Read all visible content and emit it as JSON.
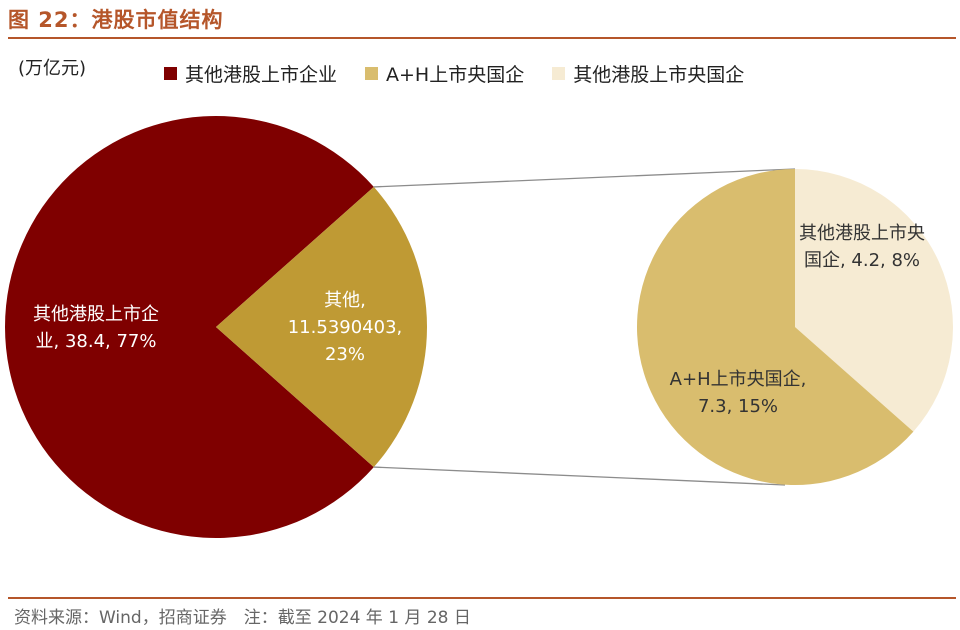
{
  "title": "图 22：港股市值结构",
  "unit_label": "(万亿元)",
  "legend": [
    {
      "label": "其他港股上市企业",
      "color": "#7f0000"
    },
    {
      "label": "A+H上市央国企",
      "color": "#d9bd6e"
    },
    {
      "label": "其他港股上市央国企",
      "color": "#f6ebd3"
    }
  ],
  "source_note": "资料来源：Wind，招商证券　注：截至 2024 年 1 月 28 日",
  "chart_data": {
    "type": "pie",
    "main_pie": {
      "slices": [
        {
          "name": "其他港股上市企业",
          "value": 38.4,
          "percent": "77%",
          "color": "#7f0000",
          "label_lines": [
            "其他港股上市企",
            "业, 38.4, 77%"
          ],
          "label_color": "#ffffff"
        },
        {
          "name": "其他",
          "value": 11.5390403,
          "percent": "23%",
          "color": "#bf9a34",
          "label_lines": [
            "其他,",
            "11.5390403,",
            "23%"
          ],
          "label_color": "#ffffff"
        }
      ]
    },
    "sub_pie": {
      "of": "其他",
      "slices": [
        {
          "name": "其他港股上市央国企",
          "value": 4.2,
          "percent": "8%",
          "color": "#f6ebd3",
          "label_lines": [
            "其他港股上市央",
            "国企, 4.2, 8%"
          ],
          "label_color": "#333333"
        },
        {
          "name": "A+H上市央国企",
          "value": 7.3,
          "percent": "15%",
          "color": "#d9bd6e",
          "label_lines": [
            "A+H上市央国企,",
            "7.3, 15%"
          ],
          "label_color": "#333333"
        }
      ]
    }
  }
}
